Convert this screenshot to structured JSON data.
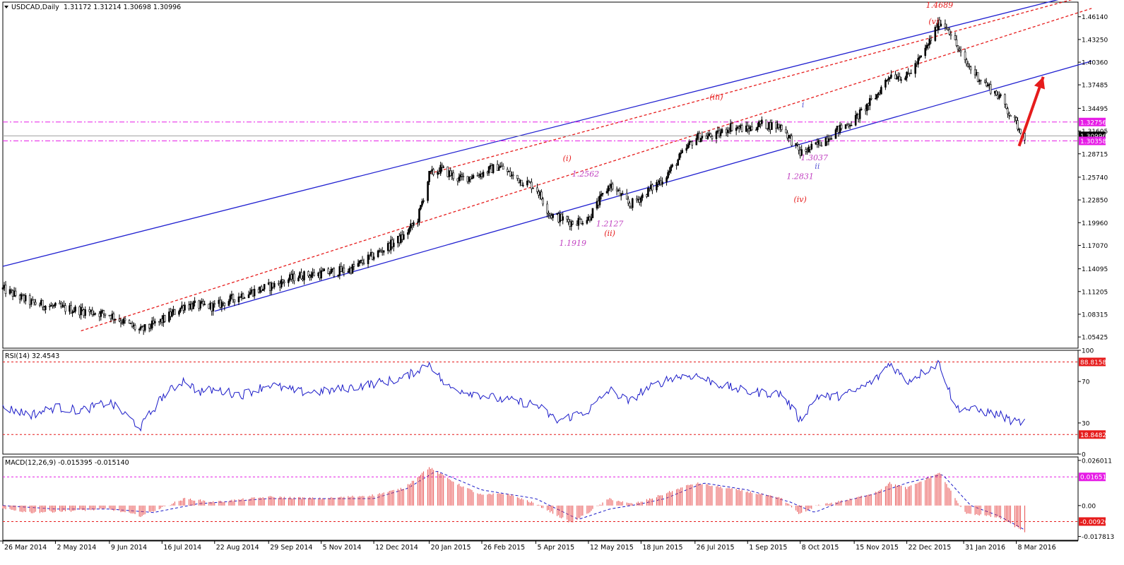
{
  "chart_data": [
    {
      "type": "candlestick",
      "title": "USDCAD,Daily",
      "ohlc_label": {
        "open": "1.31172",
        "high": "1.31214",
        "low": "1.30698",
        "close": "1.30996"
      },
      "ylim": [
        1.04,
        1.48
      ],
      "y_ticks": [
        "1.46140",
        "1.43250",
        "1.40360",
        "1.37485",
        "1.34495",
        "1.31605",
        "1.28715",
        "1.25740",
        "1.22850",
        "1.19960",
        "1.17070",
        "1.14095",
        "1.11205",
        "1.08315",
        "1.05425"
      ],
      "x_ticks": [
        "26 Mar 2014",
        "2 May 2014",
        "9 Jun 2014",
        "16 Jul 2014",
        "22 Aug 2014",
        "29 Sep 2014",
        "5 Nov 2014",
        "12 Dec 2014",
        "20 Jan 2015",
        "26 Feb 2015",
        "5 Apr 2015",
        "12 May 2015",
        "18 Jun 2015",
        "26 Jul 2015",
        "1 Sep 2015",
        "8 Oct 2015",
        "15 Nov 2015",
        "22 Dec 2015",
        "31 Jan 2016",
        "8 Mar 2016"
      ],
      "anchors": [
        {
          "date": "26 Mar 2014",
          "y": 1.115
        },
        {
          "date": "15 Apr 2014",
          "y": 1.098
        },
        {
          "date": "2 May 2014",
          "y": 1.092
        },
        {
          "date": "20 May 2014",
          "y": 1.088
        },
        {
          "date": "9 Jun 2014",
          "y": 1.083
        },
        {
          "date": "1 Jul 2014",
          "y": 1.062
        },
        {
          "date": "16 Jul 2014",
          "y": 1.075
        },
        {
          "date": "1 Aug 2014",
          "y": 1.095
        },
        {
          "date": "22 Aug 2014",
          "y": 1.093
        },
        {
          "date": "10 Sep 2014",
          "y": 1.108
        },
        {
          "date": "29 Sep 2014",
          "y": 1.118
        },
        {
          "date": "20 Oct 2014",
          "y": 1.132
        },
        {
          "date": "5 Nov 2014",
          "y": 1.135
        },
        {
          "date": "25 Nov 2014",
          "y": 1.14
        },
        {
          "date": "12 Dec 2014",
          "y": 1.158
        },
        {
          "date": "2 Jan 2015",
          "y": 1.182
        },
        {
          "date": "12 Jan 2015",
          "y": 1.205
        },
        {
          "date": "20 Jan 2015",
          "y": 1.26
        },
        {
          "date": "28 Jan 2015",
          "y": 1.268
        },
        {
          "date": "10 Feb 2015",
          "y": 1.255
        },
        {
          "date": "26 Feb 2015",
          "y": 1.262
        },
        {
          "date": "10 Mar 2015",
          "y": 1.272
        },
        {
          "date": "20 Mar 2015",
          "y": 1.258
        },
        {
          "date": "5 Apr 2015",
          "y": 1.245
        },
        {
          "date": "15 Apr 2015",
          "y": 1.21
        },
        {
          "date": "30 Apr 2015",
          "y": 1.2
        },
        {
          "date": "12 May 2015",
          "y": 1.205
        },
        {
          "date": "27 May 2015",
          "y": 1.248
        },
        {
          "date": "10 Jun 2015",
          "y": 1.222
        },
        {
          "date": "18 Jun 2015",
          "y": 1.232
        },
        {
          "date": "5 Jul 2015",
          "y": 1.258
        },
        {
          "date": "26 Jul 2015",
          "y": 1.308
        },
        {
          "date": "10 Aug 2015",
          "y": 1.31
        },
        {
          "date": "20 Aug 2015",
          "y": 1.322
        },
        {
          "date": "1 Sep 2015",
          "y": 1.318
        },
        {
          "date": "10 Sep 2015",
          "y": 1.325
        },
        {
          "date": "25 Sep 2015",
          "y": 1.322
        },
        {
          "date": "8 Oct 2015",
          "y": 1.288
        },
        {
          "date": "18 Oct 2015",
          "y": 1.296
        },
        {
          "date": "1 Nov 2015",
          "y": 1.315
        },
        {
          "date": "15 Nov 2015",
          "y": 1.33
        },
        {
          "date": "1 Dec 2015",
          "y": 1.362
        },
        {
          "date": "10 Dec 2015",
          "y": 1.388
        },
        {
          "date": "22 Dec 2015",
          "y": 1.385
        },
        {
          "date": "2 Jan 2016",
          "y": 1.412
        },
        {
          "date": "14 Jan 2016",
          "y": 1.455
        },
        {
          "date": "20 Jan 2016",
          "y": 1.448
        },
        {
          "date": "31 Jan 2016",
          "y": 1.405
        },
        {
          "date": "10 Feb 2016",
          "y": 1.385
        },
        {
          "date": "25 Feb 2016",
          "y": 1.36
        },
        {
          "date": "8 Mar 2016",
          "y": 1.325
        },
        {
          "date": "14 Mar 2016",
          "y": 1.31
        }
      ],
      "price_tags": [
        {
          "label": "1.32756",
          "value": 1.32756,
          "color": "#e61ce6"
        },
        {
          "label": "1.30996",
          "value": 1.30996,
          "color": "#000000"
        },
        {
          "label": "1.30358",
          "value": 1.30358,
          "color": "#e61ce6"
        }
      ],
      "wave_labels": [
        {
          "text": "1.4689",
          "date": "14 Jan 2016",
          "y": 1.473,
          "color": "#e61c1c"
        },
        {
          "text": "(v)",
          "date": "10 Jan 2016",
          "y": 1.452,
          "color": "#e61c1c"
        },
        {
          "text": "(iii)",
          "date": "10 Aug 2015",
          "y": 1.356,
          "color": "#e61c1c"
        },
        {
          "text": "i",
          "date": "10 Oct 2015",
          "y": 1.346,
          "color": "#5a5ad6"
        },
        {
          "text": "(i)",
          "date": "27 Apr 2015",
          "y": 1.278,
          "color": "#e61c1c"
        },
        {
          "text": "1.2562",
          "date": "10 May 2015",
          "y": 1.258,
          "color": "#c040c0"
        },
        {
          "text": "1.3037",
          "date": "18 Oct 2015",
          "y": 1.279,
          "color": "#c040c0"
        },
        {
          "text": "ii",
          "date": "20 Oct 2015",
          "y": 1.268,
          "color": "#5a5ad6"
        },
        {
          "text": "1.2831",
          "date": "8 Oct 2015",
          "y": 1.255,
          "color": "#c040c0"
        },
        {
          "text": "(iv)",
          "date": "8 Oct 2015",
          "y": 1.226,
          "color": "#e61c1c"
        },
        {
          "text": "1.2127",
          "date": "27 May 2015",
          "y": 1.195,
          "color": "#c040c0"
        },
        {
          "text": "(ii)",
          "date": "27 May 2015",
          "y": 1.183,
          "color": "#e61c1c"
        },
        {
          "text": "1.1919",
          "date": "1 May 2015",
          "y": 1.17,
          "color": "#c040c0"
        }
      ],
      "trend_lines": [
        {
          "name": "channel-upper",
          "style": "solid",
          "color": "#2020d0",
          "start": {
            "date": "26 Mar 2014",
            "y": 1.144
          },
          "end": {
            "date": "17 Apr 2016",
            "y": 1.488
          }
        },
        {
          "name": "channel-lower",
          "style": "solid",
          "color": "#2020d0",
          "start": {
            "date": "22 Aug 2014",
            "y": 1.087
          },
          "end": {
            "date": "30 Apr 2016",
            "y": 1.405
          }
        },
        {
          "name": "red-upper",
          "style": "dashed",
          "color": "#e61c1c",
          "start": {
            "date": "20 Jan 2015",
            "y": 1.262
          },
          "end": {
            "date": "30 Apr 2016",
            "y": 1.49
          }
        },
        {
          "name": "red-mid",
          "style": "dashed",
          "color": "#e61c1c",
          "start": {
            "date": "20 May 2014",
            "y": 1.062
          },
          "end": {
            "date": "30 Apr 2016",
            "y": 1.472
          }
        }
      ],
      "arrow": {
        "color": "#e61c1c",
        "from": {
          "date": "10 Mar 2016",
          "y": 1.297
        },
        "to": {
          "date": "27 Mar 2016",
          "y": 1.385
        }
      }
    },
    {
      "type": "line",
      "title": "RSI(14) 32.4543",
      "ylim": [
        0,
        100
      ],
      "y_ticks": [
        "100",
        "70",
        "30",
        "0"
      ],
      "levels": [
        {
          "label": "88.8158",
          "value": 88.8158
        },
        {
          "label": "18.8482",
          "value": 18.8482
        }
      ],
      "anchors": [
        {
          "date": "26 Mar 2014",
          "y": 45
        },
        {
          "date": "15 Apr 2014",
          "y": 38
        },
        {
          "date": "2 May 2014",
          "y": 45
        },
        {
          "date": "20 May 2014",
          "y": 42
        },
        {
          "date": "9 Jun 2014",
          "y": 50
        },
        {
          "date": "1 Jul 2014",
          "y": 26
        },
        {
          "date": "16 Jul 2014",
          "y": 55
        },
        {
          "date": "1 Aug 2014",
          "y": 72
        },
        {
          "date": "10 Aug 2014",
          "y": 60
        },
        {
          "date": "22 Aug 2014",
          "y": 62
        },
        {
          "date": "10 Sep 2014",
          "y": 57
        },
        {
          "date": "29 Sep 2014",
          "y": 67
        },
        {
          "date": "20 Oct 2014",
          "y": 60
        },
        {
          "date": "5 Nov 2014",
          "y": 60
        },
        {
          "date": "25 Nov 2014",
          "y": 64
        },
        {
          "date": "12 Dec 2014",
          "y": 68
        },
        {
          "date": "2 Jan 2015",
          "y": 73
        },
        {
          "date": "20 Jan 2015",
          "y": 88
        },
        {
          "date": "1 Feb 2015",
          "y": 65
        },
        {
          "date": "26 Feb 2015",
          "y": 57
        },
        {
          "date": "10 Mar 2015",
          "y": 53
        },
        {
          "date": "5 Apr 2015",
          "y": 48
        },
        {
          "date": "20 Apr 2015",
          "y": 32
        },
        {
          "date": "12 May 2015",
          "y": 42
        },
        {
          "date": "27 May 2015",
          "y": 62
        },
        {
          "date": "10 Jun 2015",
          "y": 50
        },
        {
          "date": "18 Jun 2015",
          "y": 60
        },
        {
          "date": "10 Jul 2015",
          "y": 74
        },
        {
          "date": "26 Jul 2015",
          "y": 76
        },
        {
          "date": "10 Aug 2015",
          "y": 68
        },
        {
          "date": "1 Sep 2015",
          "y": 60
        },
        {
          "date": "25 Sep 2015",
          "y": 58
        },
        {
          "date": "8 Oct 2015",
          "y": 33
        },
        {
          "date": "20 Oct 2015",
          "y": 56
        },
        {
          "date": "1 Nov 2015",
          "y": 55
        },
        {
          "date": "15 Nov 2015",
          "y": 60
        },
        {
          "date": "1 Dec 2015",
          "y": 73
        },
        {
          "date": "10 Dec 2015",
          "y": 88
        },
        {
          "date": "22 Dec 2015",
          "y": 70
        },
        {
          "date": "14 Jan 2016",
          "y": 88
        },
        {
          "date": "25 Jan 2016",
          "y": 45
        },
        {
          "date": "10 Feb 2016",
          "y": 42
        },
        {
          "date": "25 Feb 2016",
          "y": 38
        },
        {
          "date": "8 Mar 2016",
          "y": 30
        },
        {
          "date": "14 Mar 2016",
          "y": 32
        }
      ]
    },
    {
      "type": "bar",
      "title": "MACD(12,26,9) -0.015395 -0.015140",
      "ylim": [
        -0.02,
        0.028
      ],
      "y_ticks": [
        "0.026011",
        "0.00",
        "-0.017813"
      ],
      "levels": [
        {
          "label": "0.016510",
          "value": 0.01651,
          "color": "#e61ce6"
        },
        {
          "label": "-0.00920",
          "value": -0.0092,
          "color": "#e61c1c"
        }
      ],
      "histogram_anchors": [
        {
          "date": "26 Mar 2014",
          "y": -0.002
        },
        {
          "date": "15 Apr 2014",
          "y": -0.004
        },
        {
          "date": "9 Jun 2014",
          "y": -0.002
        },
        {
          "date": "1 Jul 2014",
          "y": -0.006
        },
        {
          "date": "1 Aug 2014",
          "y": 0.004
        },
        {
          "date": "22 Aug 2014",
          "y": 0.002
        },
        {
          "date": "29 Sep 2014",
          "y": 0.005
        },
        {
          "date": "5 Nov 2014",
          "y": 0.004
        },
        {
          "date": "12 Dec 2014",
          "y": 0.006
        },
        {
          "date": "2 Jan 2015",
          "y": 0.01
        },
        {
          "date": "20 Jan 2015",
          "y": 0.022
        },
        {
          "date": "10 Feb 2015",
          "y": 0.012
        },
        {
          "date": "26 Feb 2015",
          "y": 0.006
        },
        {
          "date": "15 Mar 2015",
          "y": 0.007
        },
        {
          "date": "5 Apr 2015",
          "y": 0.001
        },
        {
          "date": "30 Apr 2015",
          "y": -0.01
        },
        {
          "date": "12 May 2015",
          "y": -0.004
        },
        {
          "date": "27 May 2015",
          "y": 0.004
        },
        {
          "date": "10 Jun 2015",
          "y": 0.001
        },
        {
          "date": "18 Jun 2015",
          "y": 0.002
        },
        {
          "date": "26 Jul 2015",
          "y": 0.013
        },
        {
          "date": "10 Aug 2015",
          "y": 0.011
        },
        {
          "date": "1 Sep 2015",
          "y": 0.008
        },
        {
          "date": "25 Sep 2015",
          "y": 0.004
        },
        {
          "date": "8 Oct 2015",
          "y": -0.005
        },
        {
          "date": "20 Oct 2015",
          "y": 0.0
        },
        {
          "date": "15 Nov 2015",
          "y": 0.004
        },
        {
          "date": "1 Dec 2015",
          "y": 0.008
        },
        {
          "date": "10 Dec 2015",
          "y": 0.013
        },
        {
          "date": "22 Dec 2015",
          "y": 0.01
        },
        {
          "date": "14 Jan 2016",
          "y": 0.019
        },
        {
          "date": "31 Jan 2016",
          "y": -0.004
        },
        {
          "date": "25 Feb 2016",
          "y": -0.007
        },
        {
          "date": "14 Mar 2016",
          "y": -0.015
        }
      ],
      "signal_anchors": [
        {
          "date": "26 Mar 2014",
          "y": 0.0
        },
        {
          "date": "2 May 2014",
          "y": -0.002
        },
        {
          "date": "9 Jun 2014",
          "y": -0.002
        },
        {
          "date": "10 Jul 2014",
          "y": -0.004
        },
        {
          "date": "10 Aug 2014",
          "y": 0.001
        },
        {
          "date": "29 Sep 2014",
          "y": 0.004
        },
        {
          "date": "12 Dec 2014",
          "y": 0.004
        },
        {
          "date": "5 Jan 2015",
          "y": 0.01
        },
        {
          "date": "25 Jan 2015",
          "y": 0.02
        },
        {
          "date": "26 Feb 2015",
          "y": 0.009
        },
        {
          "date": "5 Apr 2015",
          "y": 0.004
        },
        {
          "date": "5 May 2015",
          "y": -0.008
        },
        {
          "date": "27 May 2015",
          "y": -0.002
        },
        {
          "date": "18 Jun 2015",
          "y": 0.001
        },
        {
          "date": "5 Jul 2015",
          "y": 0.004
        },
        {
          "date": "1 Aug 2015",
          "y": 0.013
        },
        {
          "date": "1 Sep 2015",
          "y": 0.009
        },
        {
          "date": "1 Oct 2015",
          "y": 0.002
        },
        {
          "date": "18 Oct 2015",
          "y": -0.004
        },
        {
          "date": "5 Nov 2015",
          "y": 0.002
        },
        {
          "date": "1 Dec 2015",
          "y": 0.007
        },
        {
          "date": "22 Dec 2015",
          "y": 0.013
        },
        {
          "date": "16 Jan 2016",
          "y": 0.018
        },
        {
          "date": "5 Feb 2016",
          "y": 0.0
        },
        {
          "date": "25 Feb 2016",
          "y": -0.006
        },
        {
          "date": "14 Mar 2016",
          "y": -0.014
        }
      ]
    }
  ]
}
